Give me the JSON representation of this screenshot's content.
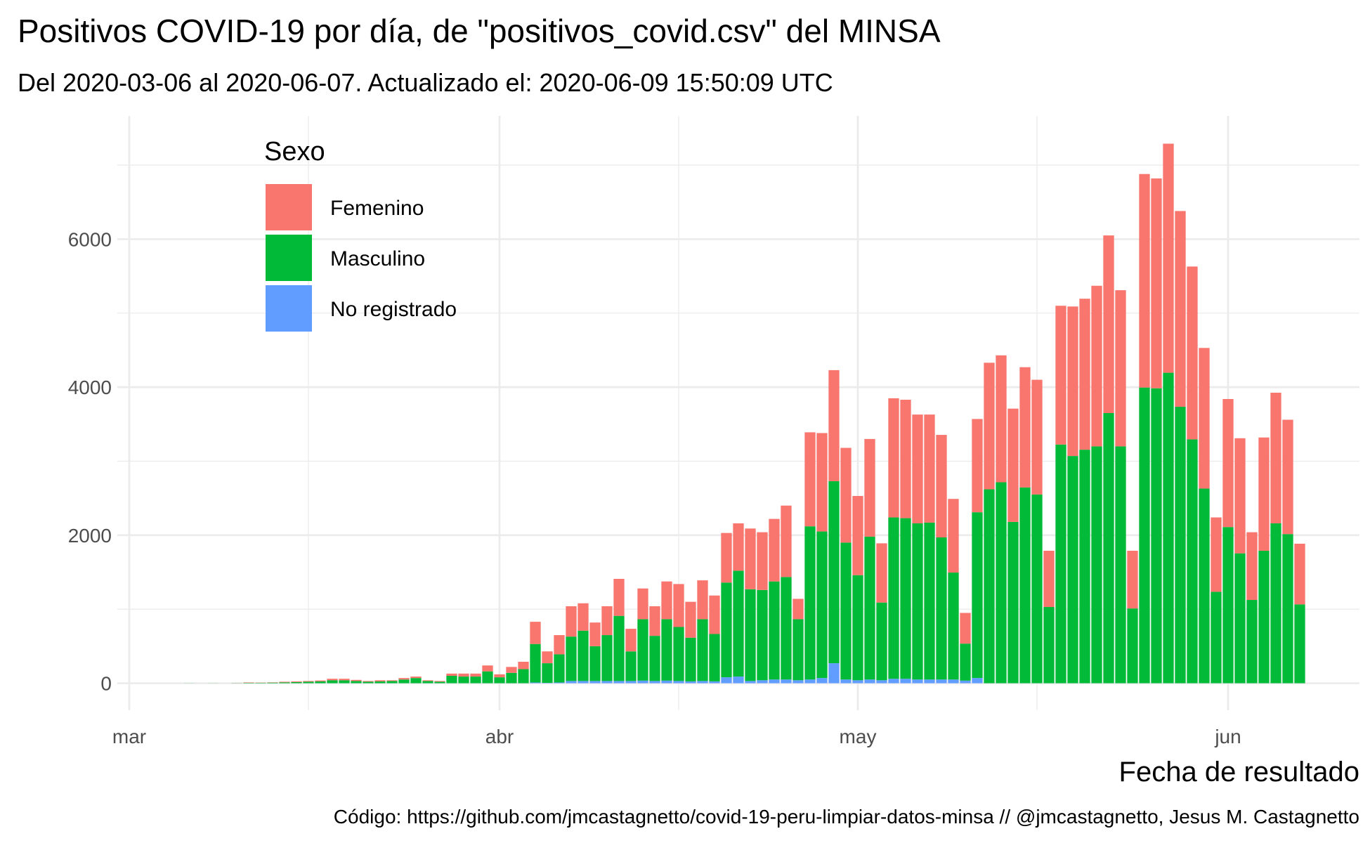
{
  "chart_data": {
    "type": "stacked-bar",
    "title": "Positivos COVID-19 por día, de \"positivos_covid.csv\" del MINSA",
    "subtitle": "Del 2020-03-06 al 2020-06-07. Actualizado el: 2020-06-09 15:50:09 UTC",
    "x_label": "Fecha de resultado",
    "caption": "Código: https://github.com/jmcastagnetto/covid-19-peru-limpiar-datos-minsa // @jmcastagnetto, Jesus M. Castagnetto",
    "legend_title": "Sexo",
    "legend": "top-left",
    "grid": true,
    "x": [
      "2020-03-06",
      "2020-03-07",
      "2020-03-08",
      "2020-03-09",
      "2020-03-10",
      "2020-03-11",
      "2020-03-12",
      "2020-03-13",
      "2020-03-14",
      "2020-03-15",
      "2020-03-16",
      "2020-03-17",
      "2020-03-18",
      "2020-03-19",
      "2020-03-20",
      "2020-03-21",
      "2020-03-22",
      "2020-03-23",
      "2020-03-24",
      "2020-03-25",
      "2020-03-26",
      "2020-03-27",
      "2020-03-28",
      "2020-03-29",
      "2020-03-30",
      "2020-03-31",
      "2020-04-01",
      "2020-04-02",
      "2020-04-03",
      "2020-04-04",
      "2020-04-05",
      "2020-04-06",
      "2020-04-07",
      "2020-04-08",
      "2020-04-09",
      "2020-04-10",
      "2020-04-11",
      "2020-04-12",
      "2020-04-13",
      "2020-04-14",
      "2020-04-15",
      "2020-04-16",
      "2020-04-17",
      "2020-04-18",
      "2020-04-19",
      "2020-04-20",
      "2020-04-21",
      "2020-04-22",
      "2020-04-23",
      "2020-04-24",
      "2020-04-25",
      "2020-04-26",
      "2020-04-27",
      "2020-04-28",
      "2020-04-29",
      "2020-04-30",
      "2020-05-01",
      "2020-05-02",
      "2020-05-03",
      "2020-05-04",
      "2020-05-05",
      "2020-05-06",
      "2020-05-07",
      "2020-05-08",
      "2020-05-09",
      "2020-05-10",
      "2020-05-11",
      "2020-05-12",
      "2020-05-13",
      "2020-05-14",
      "2020-05-15",
      "2020-05-16",
      "2020-05-17",
      "2020-05-18",
      "2020-05-19",
      "2020-05-20",
      "2020-05-21",
      "2020-05-22",
      "2020-05-23",
      "2020-05-24",
      "2020-05-25",
      "2020-05-26",
      "2020-05-27",
      "2020-05-28",
      "2020-05-29",
      "2020-05-30",
      "2020-05-31",
      "2020-06-01",
      "2020-06-02",
      "2020-06-03",
      "2020-06-04",
      "2020-06-05",
      "2020-06-06",
      "2020-06-07"
    ],
    "series": [
      {
        "name": "Femenino",
        "color": "#F8766D",
        "values": [
          0,
          0,
          0,
          0,
          1,
          5,
          3,
          4,
          8,
          10,
          10,
          12,
          20,
          20,
          15,
          10,
          15,
          10,
          20,
          20,
          10,
          10,
          30,
          40,
          40,
          80,
          40,
          80,
          100,
          300,
          160,
          260,
          410,
          370,
          320,
          390,
          500,
          305,
          415,
          400,
          510,
          580,
          485,
          525,
          520,
          670,
          640,
          820,
          780,
          845,
          965,
          275,
          1270,
          1330,
          1500,
          1280,
          1070,
          1320,
          800,
          1610,
          1600,
          1470,
          1460,
          1385,
          995,
          415,
          1260,
          1710,
          1715,
          1530,
          1625,
          1550,
          760,
          1875,
          2020,
          2040,
          2170,
          2400,
          2110,
          780,
          2885,
          2835,
          3095,
          2645,
          2335,
          1900,
          1005,
          1730,
          1555,
          915,
          1530,
          1765,
          1545,
          820
        ]
      },
      {
        "name": "Masculino",
        "color": "#00BA38",
        "values": [
          1,
          0,
          1,
          0,
          2,
          5,
          5,
          8,
          12,
          15,
          20,
          25,
          40,
          40,
          30,
          20,
          25,
          30,
          50,
          70,
          30,
          20,
          100,
          90,
          90,
          160,
          80,
          140,
          190,
          520,
          265,
          380,
          600,
          680,
          470,
          620,
          880,
          400,
          830,
          610,
          830,
          730,
          590,
          835,
          640,
          1280,
          1430,
          1240,
          1220,
          1325,
          1385,
          825,
          2070,
          1980,
          2460,
          1850,
          1420,
          1930,
          1050,
          2180,
          2170,
          2110,
          2120,
          1920,
          1445,
          500,
          2240,
          2620,
          2715,
          2180,
          2645,
          2550,
          1030,
          3225,
          3070,
          3155,
          3200,
          3650,
          3200,
          1010,
          3995,
          3985,
          4195,
          3735,
          3295,
          2630,
          1235,
          2110,
          1755,
          1125,
          1790,
          2160,
          2015,
          1065
        ]
      },
      {
        "name": "No registrado",
        "color": "#619CFF",
        "values": [
          0,
          0,
          0,
          0,
          0,
          0,
          0,
          0,
          0,
          0,
          0,
          0,
          0,
          0,
          0,
          0,
          0,
          0,
          0,
          0,
          0,
          0,
          0,
          0,
          0,
          0,
          0,
          0,
          0,
          10,
          5,
          10,
          30,
          30,
          30,
          30,
          30,
          30,
          35,
          30,
          35,
          30,
          25,
          30,
          25,
          80,
          90,
          30,
          40,
          50,
          50,
          40,
          50,
          70,
          270,
          50,
          40,
          50,
          40,
          60,
          60,
          50,
          50,
          50,
          50,
          35,
          70,
          0,
          0,
          0,
          0,
          0,
          0,
          0,
          0,
          0,
          0,
          0,
          0,
          0,
          0,
          0,
          0,
          0,
          0,
          0,
          0,
          0,
          0,
          0,
          0,
          0,
          0,
          0
        ]
      }
    ],
    "xlim": [
      "2020-02-29",
      "2020-06-12"
    ],
    "xticks": [
      {
        "value": "2020-03-01",
        "label": "mar"
      },
      {
        "value": "2020-04-01",
        "label": "abr"
      },
      {
        "value": "2020-05-01",
        "label": "may"
      },
      {
        "value": "2020-06-01",
        "label": "jun"
      }
    ],
    "xminor": [
      "2020-03-16",
      "2020-04-16",
      "2020-05-16"
    ],
    "ylim": [
      -365,
      7665
    ],
    "yticks": [
      0,
      2000,
      4000,
      6000
    ],
    "yminor": [
      1000,
      3000,
      5000,
      7000
    ]
  }
}
